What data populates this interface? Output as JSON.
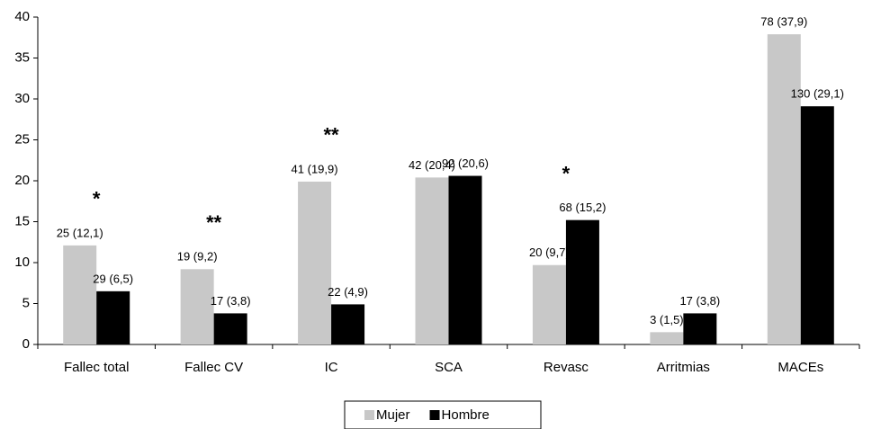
{
  "chart_data": {
    "type": "bar",
    "categories": [
      "Fallec total",
      "Fallec CV",
      "IC",
      "SCA",
      "Revasc",
      "Arritmias",
      "MACEs"
    ],
    "series": [
      {
        "name": "Mujer",
        "color": "#c8c8c8",
        "values": [
          12.1,
          9.2,
          19.9,
          20.4,
          9.7,
          1.5,
          37.9
        ],
        "value_labels": [
          "25 (12,1)",
          "19 (9,2)",
          "41 (19,9)",
          "42 (20,4)",
          "20 (9,7)",
          "3 (1,5)",
          "78 (37,9)"
        ]
      },
      {
        "name": "Hombre",
        "color": "#000000",
        "values": [
          6.5,
          3.8,
          4.9,
          20.6,
          15.2,
          3.8,
          29.1
        ],
        "value_labels": [
          "29 (6,5)",
          "17 (3,8)",
          "22 (4,9)",
          "92 (20,6)",
          "68 (15,2)",
          "17 (3,8)",
          "130 (29,1)"
        ]
      }
    ],
    "annotations": [
      {
        "category": "Fallec total",
        "text": "*"
      },
      {
        "category": "Fallec CV",
        "text": "**"
      },
      {
        "category": "IC",
        "text": "**"
      },
      {
        "category": "Revasc",
        "text": "*"
      },
      {
        "category": "MACEs",
        "text": "*"
      }
    ],
    "ylim": [
      0,
      40
    ],
    "yticks": [
      0,
      5,
      10,
      15,
      20,
      25,
      30,
      35,
      40
    ],
    "grid": false,
    "legend": "bottom"
  }
}
